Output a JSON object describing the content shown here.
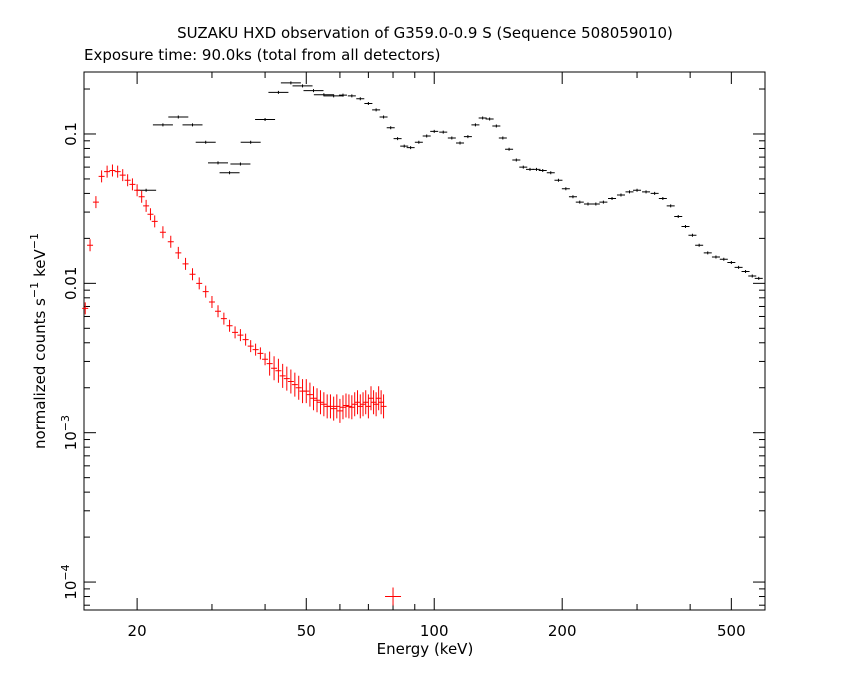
{
  "chart_data": {
    "type": "scatter",
    "title": "SUZAKU HXD observation of G359.0-0.9 S (Sequence 508059010)",
    "subtitle": "Exposure time: 90.0ks (total from all detectors)",
    "xlabel": "Energy (keV)",
    "ylabel": "normalized counts s",
    "ylabel_unit": "keV",
    "ylabel_exp1": "−1",
    "ylabel_exp2": "−1",
    "xscale": "log",
    "yscale": "log",
    "xlim": [
      15,
      600
    ],
    "ylim": [
      6.5e-05,
      0.26
    ],
    "x_ticks": [
      {
        "value": 20,
        "label": "20"
      },
      {
        "value": 50,
        "label": "50"
      },
      {
        "value": 100,
        "label": "100"
      },
      {
        "value": 200,
        "label": "200"
      },
      {
        "value": 500,
        "label": "500"
      }
    ],
    "y_ticks": [
      {
        "value": 0.1,
        "label": "0.1"
      },
      {
        "value": 0.01,
        "label": "0.01"
      },
      {
        "value": 0.001,
        "base": "10",
        "exp": "−3"
      },
      {
        "value": 0.0001,
        "base": "10",
        "exp": "−4"
      }
    ],
    "grid": false,
    "legend": "none",
    "series": [
      {
        "color": "#000000",
        "x": [
          21,
          23,
          25,
          27,
          29,
          31,
          33,
          35,
          37,
          40,
          43,
          46,
          49,
          52,
          55,
          58,
          61,
          64,
          67,
          70,
          73,
          76,
          79,
          82,
          85,
          88,
          92,
          96,
          100,
          105,
          110,
          115,
          120,
          125,
          130,
          135,
          140,
          145,
          150,
          156,
          162,
          168,
          174,
          180,
          188,
          196,
          204,
          212,
          220,
          230,
          240,
          250,
          262,
          275,
          288,
          300,
          315,
          330,
          345,
          360,
          375,
          390,
          405,
          420,
          440,
          460,
          480,
          500,
          520,
          540,
          560,
          580
        ],
        "y": [
          0.042,
          0.115,
          0.13,
          0.115,
          0.088,
          0.064,
          0.055,
          0.063,
          0.088,
          0.125,
          0.19,
          0.22,
          0.21,
          0.195,
          0.183,
          0.18,
          0.182,
          0.18,
          0.172,
          0.16,
          0.145,
          0.13,
          0.11,
          0.093,
          0.083,
          0.081,
          0.088,
          0.097,
          0.104,
          0.103,
          0.094,
          0.087,
          0.096,
          0.115,
          0.128,
          0.126,
          0.113,
          0.094,
          0.079,
          0.067,
          0.06,
          0.058,
          0.058,
          0.057,
          0.055,
          0.049,
          0.043,
          0.038,
          0.035,
          0.034,
          0.034,
          0.035,
          0.037,
          0.039,
          0.041,
          0.042,
          0.041,
          0.04,
          0.037,
          0.033,
          0.028,
          0.024,
          0.021,
          0.018,
          0.016,
          0.015,
          0.0145,
          0.0138,
          0.0128,
          0.012,
          0.0112,
          0.0108
        ]
      },
      {
        "color": "#ff0000",
        "x": [
          15.1,
          15.5,
          16,
          16.5,
          17,
          17.5,
          18,
          18.5,
          19,
          19.5,
          20,
          20.5,
          21,
          21.5,
          22,
          23,
          24,
          25,
          26,
          27,
          28,
          29,
          30,
          31,
          32,
          33,
          34,
          35,
          36,
          37,
          38,
          39,
          40,
          41,
          42,
          43,
          44,
          45,
          46,
          47,
          48,
          49,
          50,
          51,
          52,
          53,
          54,
          55,
          56,
          57,
          58,
          59,
          60,
          61,
          62,
          63,
          64,
          65,
          66,
          67,
          68,
          69,
          70,
          71,
          72,
          73,
          74,
          75,
          76,
          80
        ],
        "y": [
          0.0068,
          0.018,
          0.035,
          0.052,
          0.056,
          0.057,
          0.056,
          0.053,
          0.049,
          0.046,
          0.042,
          0.038,
          0.033,
          0.029,
          0.026,
          0.022,
          0.019,
          0.016,
          0.0135,
          0.0115,
          0.01,
          0.0088,
          0.0075,
          0.0065,
          0.0058,
          0.0052,
          0.0047,
          0.0045,
          0.0042,
          0.0038,
          0.0036,
          0.0034,
          0.0031,
          0.0029,
          0.0027,
          0.0026,
          0.0024,
          0.0023,
          0.0022,
          0.0021,
          0.002,
          0.0019,
          0.0019,
          0.0018,
          0.0017,
          0.00165,
          0.0016,
          0.00155,
          0.0015,
          0.0015,
          0.00145,
          0.0015,
          0.0014,
          0.00148,
          0.00152,
          0.0015,
          0.00148,
          0.00155,
          0.0016,
          0.0015,
          0.00155,
          0.0016,
          0.0015,
          0.0017,
          0.0016,
          0.00155,
          0.0017,
          0.0016,
          0.0015,
          8e-05
        ]
      }
    ]
  }
}
